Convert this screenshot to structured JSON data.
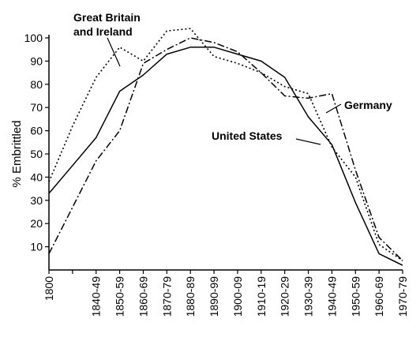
{
  "chart_data": {
    "type": "line",
    "title": "",
    "xlabel": "",
    "ylabel": "% Embrittled",
    "ylim": [
      0,
      100
    ],
    "yticks": [
      10,
      20,
      30,
      40,
      50,
      60,
      70,
      80,
      90,
      100
    ],
    "categories": [
      "1800",
      "",
      "1840-49",
      "1850-59",
      "1860-69",
      "1870-79",
      "1880-89",
      "1890-99",
      "1900-09",
      "1910-19",
      "1920-29",
      "1930-39",
      "1940-49",
      "1950-59",
      "1960-69",
      "1970-79"
    ],
    "grid": false,
    "legend": "none",
    "series": [
      {
        "name": "United States",
        "style": "solid",
        "values": [
          33,
          45,
          57,
          77,
          84,
          93,
          96,
          96,
          93,
          90,
          83,
          66,
          54,
          29,
          7,
          2
        ]
      },
      {
        "name": "Great Britain and Ireland",
        "style": "dotted",
        "values": [
          38,
          62,
          83,
          96,
          90,
          103,
          104,
          92,
          89,
          85,
          79,
          76,
          53,
          40,
          11,
          4
        ]
      },
      {
        "name": "Germany",
        "style": "dashdot",
        "values": [
          7,
          27,
          47,
          60,
          89,
          95,
          100,
          98,
          94,
          85,
          75,
          74,
          76,
          43,
          14,
          4
        ]
      }
    ],
    "annotations": [
      {
        "label": "Great Britain and Ireland",
        "lines": [
          "Great Britain",
          "and Ireland"
        ]
      },
      {
        "label": "Germany",
        "lines": [
          "Germany"
        ]
      },
      {
        "label": "United States",
        "lines": [
          "United States"
        ]
      }
    ]
  }
}
